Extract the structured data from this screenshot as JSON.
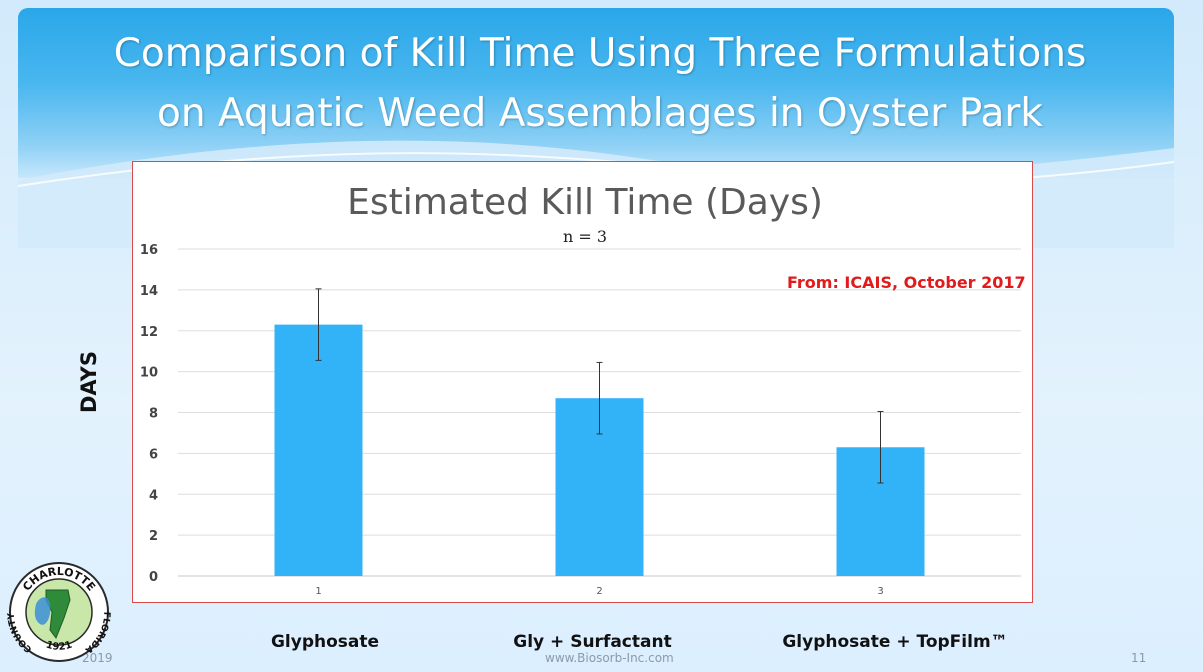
{
  "slide": {
    "title_line1": "Comparison of Kill Time Using Three Formulations",
    "title_line2": "on Aquatic Weed Assemblages in Oyster Park",
    "y_axis_label": "DAYS",
    "source_note": "From: ICAIS, October 2017",
    "category_labels": [
      "Glyphosate",
      "Gly + Surfactant",
      "Glyphosate + TopFilm™"
    ],
    "footer": {
      "year": "2019",
      "website": "www.Biosorb-Inc.com",
      "page_number": "11"
    },
    "logo": {
      "icon": "charlotte-county-florida-seal",
      "text_top": "CHARLOTTE",
      "text_left": "COUNTY",
      "text_right": "FLORIDA",
      "text_bottom": "1921"
    }
  },
  "colors": {
    "bar": "#33b3f7",
    "title_banner": "#3aaeed",
    "source_note": "#e11b1b",
    "frame_border": "#d94a4a"
  },
  "chart_data": {
    "type": "bar",
    "title": "Estimated Kill Time (Days)",
    "subtitle": "n = 3",
    "categories": [
      "1",
      "2",
      "3"
    ],
    "values": [
      12.3,
      8.7,
      6.3
    ],
    "error": [
      1.75,
      1.75,
      1.75
    ],
    "ylim": [
      0,
      16
    ],
    "yticks": [
      0,
      2,
      4,
      6,
      8,
      10,
      12,
      14,
      16
    ],
    "grid": true
  }
}
